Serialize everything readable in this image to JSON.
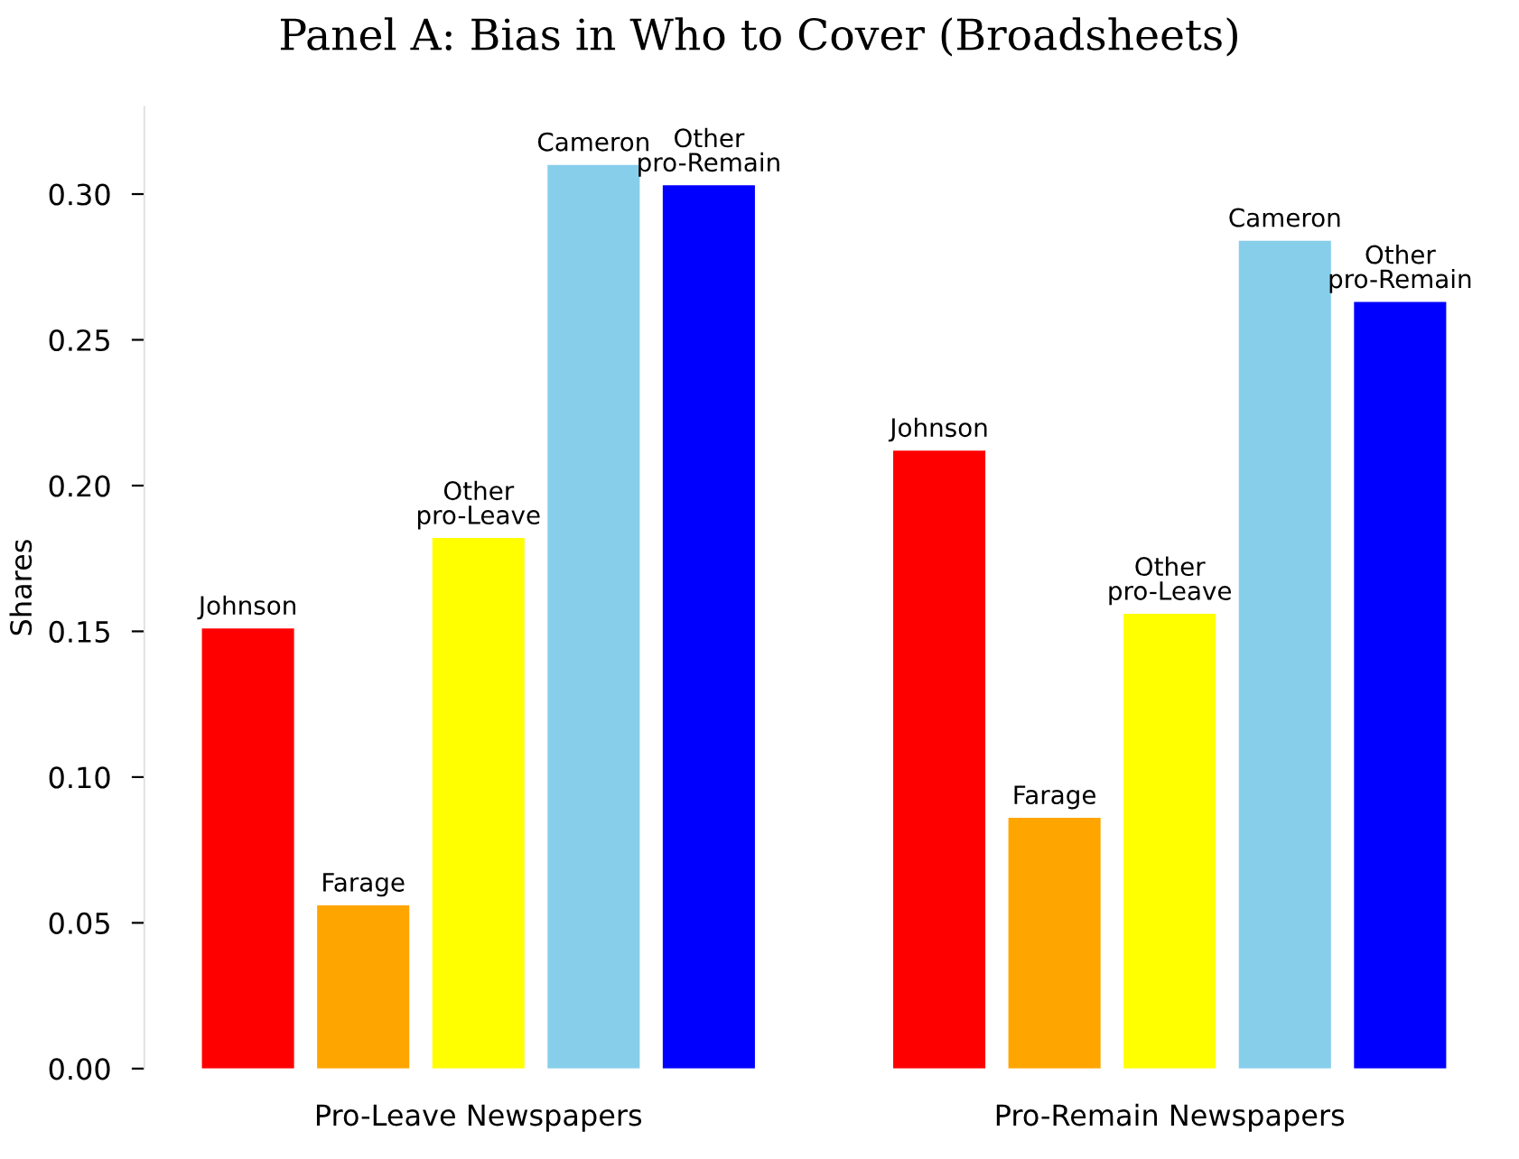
{
  "chart_data": {
    "type": "bar",
    "title": "Panel A: Bias in Who to Cover (Broadsheets)",
    "ylabel": "Shares",
    "categories": [
      "Pro-Leave Newspapers",
      "Pro-Remain Newspapers"
    ],
    "series": [
      {
        "name": "Johnson",
        "color": "#ff0000",
        "values": [
          0.151,
          0.212
        ]
      },
      {
        "name": "Farage",
        "color": "#ffa500",
        "values": [
          0.056,
          0.086
        ]
      },
      {
        "name": "Other\npro-Leave",
        "color": "#ffff00",
        "values": [
          0.182,
          0.156
        ]
      },
      {
        "name": "Cameron",
        "color": "#87ceeb",
        "values": [
          0.31,
          0.284
        ]
      },
      {
        "name": "Other\npro-Remain",
        "color": "#0000ff",
        "values": [
          0.303,
          0.263
        ]
      }
    ],
    "ylim": [
      0,
      0.33
    ],
    "yticks": [
      {
        "value": 0,
        "label": "0.00"
      },
      {
        "value": 0.05,
        "label": "0.05"
      },
      {
        "value": 0.1,
        "label": "0.10"
      },
      {
        "value": 0.15,
        "label": "0.15"
      },
      {
        "value": 0.2,
        "label": "0.20"
      },
      {
        "value": 0.25,
        "label": "0.25"
      },
      {
        "value": 0.3,
        "label": "0.30"
      }
    ],
    "grid": false,
    "legend": false
  }
}
